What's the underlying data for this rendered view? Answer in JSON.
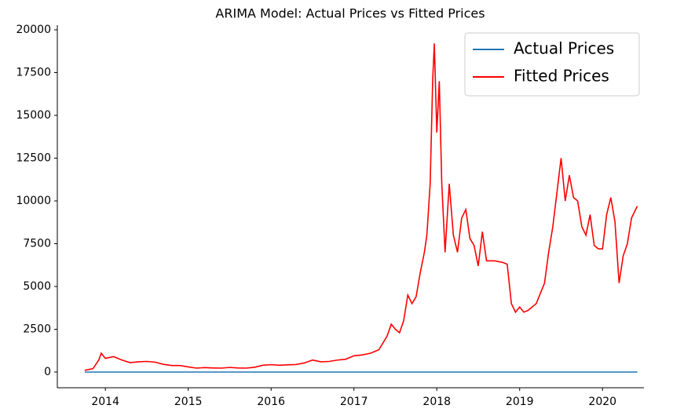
{
  "chart_data": {
    "type": "line",
    "title": "ARIMA Model: Actual Prices vs Fitted Prices",
    "x": [
      2013.75,
      2013.85,
      2013.92,
      2013.95,
      2014.0,
      2014.1,
      2014.2,
      2014.3,
      2014.4,
      2014.5,
      2014.6,
      2014.7,
      2014.8,
      2014.9,
      2015.0,
      2015.1,
      2015.2,
      2015.3,
      2015.4,
      2015.5,
      2015.6,
      2015.7,
      2015.8,
      2015.9,
      2016.0,
      2016.1,
      2016.2,
      2016.3,
      2016.4,
      2016.5,
      2016.6,
      2016.7,
      2016.8,
      2016.9,
      2017.0,
      2017.1,
      2017.2,
      2017.3,
      2017.4,
      2017.45,
      2017.5,
      2017.55,
      2017.6,
      2017.65,
      2017.7,
      2017.75,
      2017.8,
      2017.85,
      2017.88,
      2017.92,
      2017.95,
      2017.97,
      2018.0,
      2018.03,
      2018.06,
      2018.1,
      2018.15,
      2018.2,
      2018.25,
      2018.3,
      2018.35,
      2018.4,
      2018.45,
      2018.5,
      2018.55,
      2018.6,
      2018.7,
      2018.8,
      2018.85,
      2018.9,
      2018.95,
      2019.0,
      2019.05,
      2019.1,
      2019.2,
      2019.3,
      2019.35,
      2019.4,
      2019.45,
      2019.5,
      2019.55,
      2019.6,
      2019.65,
      2019.7,
      2019.75,
      2019.8,
      2019.85,
      2019.9,
      2019.95,
      2020.0,
      2020.05,
      2020.1,
      2020.15,
      2020.2,
      2020.25,
      2020.3,
      2020.35,
      2020.4,
      2020.42
    ],
    "series": [
      {
        "name": "Actual Prices",
        "color": "#1f77b4",
        "values": [
          0,
          0,
          0,
          0,
          0,
          0,
          0,
          0,
          0,
          0,
          0,
          0,
          0,
          0,
          0,
          0,
          0,
          0,
          0,
          0,
          0,
          0,
          0,
          0,
          0,
          0,
          0,
          0,
          0,
          0,
          0,
          0,
          0,
          0,
          0,
          0,
          0,
          0,
          0,
          0,
          0,
          0,
          0,
          0,
          0,
          0,
          0,
          0,
          0,
          0,
          0,
          0,
          0,
          0,
          0,
          0,
          0,
          0,
          0,
          0,
          0,
          0,
          0,
          0,
          0,
          0,
          0,
          0,
          0,
          0,
          0,
          0,
          0,
          0,
          0,
          0,
          0,
          0,
          0,
          0,
          0,
          0,
          0,
          0,
          0,
          0,
          0,
          0,
          0,
          0,
          0,
          0,
          0,
          0,
          0,
          0,
          0,
          0,
          0
        ]
      },
      {
        "name": "Fitted Prices",
        "color": "#ff0000",
        "values": [
          100,
          200,
          700,
          1100,
          800,
          900,
          700,
          550,
          600,
          620,
          580,
          450,
          380,
          380,
          300,
          230,
          260,
          240,
          230,
          270,
          240,
          230,
          280,
          400,
          430,
          400,
          420,
          440,
          530,
          700,
          600,
          620,
          700,
          750,
          950,
          1000,
          1100,
          1300,
          2100,
          2800,
          2500,
          2300,
          3000,
          4500,
          4000,
          4400,
          5800,
          7000,
          8000,
          11000,
          17000,
          19200,
          14000,
          17000,
          11000,
          7000,
          11000,
          8000,
          7000,
          9000,
          9500,
          7800,
          7400,
          6200,
          8200,
          6500,
          6500,
          6400,
          6300,
          4000,
          3500,
          3800,
          3500,
          3600,
          4000,
          5200,
          7000,
          8500,
          10500,
          12500,
          10000,
          11500,
          10200,
          10000,
          8500,
          8000,
          9200,
          7400,
          7200,
          7200,
          9200,
          10200,
          8800,
          5200,
          6800,
          7500,
          9000,
          9500,
          9700
        ]
      }
    ],
    "xlim": [
      2013.42,
      2020.5
    ],
    "xticks": [
      2014,
      2015,
      2016,
      2017,
      2018,
      2019,
      2020
    ],
    "ylim": [
      -917,
      20275
    ],
    "yticks": [
      0,
      2500,
      5000,
      7500,
      10000,
      12500,
      15000,
      17500,
      20000
    ],
    "legend": "upper right"
  }
}
